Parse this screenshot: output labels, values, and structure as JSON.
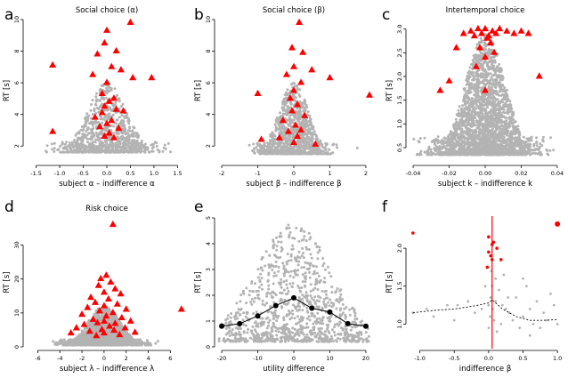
{
  "colors": {
    "points": "#b3b3b3",
    "highlight": "#ff0000",
    "line": "#000000"
  },
  "chart_data": [
    {
      "panel": "a",
      "type": "scatter",
      "title": "Social choice (α)",
      "xlabel": "subject α – indifference α",
      "ylabel": "RT [s]",
      "xlim": [
        -1.7,
        1.7
      ],
      "ylim": [
        1,
        10
      ],
      "xticks": [
        -1.5,
        -1.0,
        -0.5,
        0.0,
        0.5,
        1.0,
        1.5
      ],
      "xtick_labels": [
        "-1.5",
        "-1.0",
        "-0.5",
        "0.0",
        "0.5",
        "1.0",
        "1.5"
      ],
      "yticks": [
        2,
        4,
        6,
        8,
        10
      ],
      "ytick_labels": [
        "2",
        "4",
        "6",
        "8",
        "10"
      ],
      "cloud": {
        "center_x": 0.0,
        "spread_x": 0.45,
        "y_min": 1.6,
        "y_peak": 6.0,
        "count": 900
      },
      "highlight_points": [
        [
          0.0,
          9.3
        ],
        [
          0.5,
          9.8
        ],
        [
          -0.05,
          8.5
        ],
        [
          0.2,
          8.0
        ],
        [
          -0.2,
          7.8
        ],
        [
          -1.15,
          7.1
        ],
        [
          0.1,
          7.0
        ],
        [
          0.3,
          6.8
        ],
        [
          0.95,
          6.3
        ],
        [
          -0.3,
          6.5
        ],
        [
          0.55,
          6.3
        ],
        [
          0.0,
          6.0
        ],
        [
          -0.1,
          5.3
        ],
        [
          0.15,
          5.0
        ],
        [
          0.05,
          4.8
        ],
        [
          -0.05,
          4.5
        ],
        [
          0.2,
          4.3
        ],
        [
          -0.1,
          4.1
        ],
        [
          0.35,
          4.2
        ],
        [
          -0.25,
          3.8
        ],
        [
          0.1,
          3.6
        ],
        [
          0.0,
          3.4
        ],
        [
          -0.15,
          3.2
        ],
        [
          0.25,
          3.1
        ],
        [
          -1.15,
          2.9
        ],
        [
          0.05,
          2.8
        ],
        [
          -0.05,
          2.6
        ],
        [
          0.15,
          2.5
        ]
      ]
    },
    {
      "panel": "b",
      "type": "scatter",
      "title": "Social choice (β)",
      "xlabel": "subject β – indifference β",
      "ylabel": "RT [s]",
      "xlim": [
        -2.1,
        2.1
      ],
      "ylim": [
        1,
        10
      ],
      "xticks": [
        -2,
        -1,
        0,
        1,
        2
      ],
      "xtick_labels": [
        "-2",
        "-1",
        "0",
        "1",
        "2"
      ],
      "yticks": [
        2,
        4,
        6,
        8,
        10
      ],
      "ytick_labels": [
        "2",
        "4",
        "6",
        "8",
        "10"
      ],
      "cloud": {
        "center_x": 0.0,
        "spread_x": 0.45,
        "y_min": 1.5,
        "y_peak": 6.0,
        "count": 1000
      },
      "highlight_points": [
        [
          0.15,
          9.8
        ],
        [
          -0.05,
          8.2
        ],
        [
          0.25,
          7.9
        ],
        [
          0.0,
          7.0
        ],
        [
          -0.2,
          6.5
        ],
        [
          0.5,
          6.8
        ],
        [
          1.0,
          6.3
        ],
        [
          -1.0,
          5.3
        ],
        [
          0.2,
          6.0
        ],
        [
          0.0,
          5.5
        ],
        [
          -0.1,
          5.0
        ],
        [
          0.1,
          4.6
        ],
        [
          2.1,
          5.2
        ],
        [
          -0.05,
          4.2
        ],
        [
          0.3,
          3.9
        ],
        [
          -0.3,
          3.6
        ],
        [
          0.05,
          3.3
        ],
        [
          0.2,
          3.0
        ],
        [
          -0.15,
          2.9
        ],
        [
          0.1,
          2.6
        ],
        [
          -0.9,
          2.4
        ],
        [
          0.0,
          2.2
        ],
        [
          0.6,
          2.1
        ],
        [
          -0.4,
          2.5
        ]
      ]
    },
    {
      "panel": "c",
      "type": "scatter",
      "title": "Intertemporal choice",
      "xlabel": "subject k – indifference k",
      "ylabel": "RT [s]",
      "xlim": [
        -0.042,
        0.042
      ],
      "ylim": [
        0.2,
        3.2
      ],
      "xticks": [
        -0.04,
        -0.02,
        0.0,
        0.02,
        0.04
      ],
      "xtick_labels": [
        "-0.04",
        "-0.02",
        "0.00",
        "0.02",
        "0.04"
      ],
      "yticks": [
        0.5,
        1.0,
        1.5,
        2.0,
        2.5,
        3.0
      ],
      "ytick_labels": [
        "0.5",
        "1.0",
        "1.5",
        "2.0",
        "2.5",
        "3.0"
      ],
      "cloud": {
        "center_x": 0.0,
        "spread_x": 0.012,
        "y_min": 0.35,
        "y_peak": 2.9,
        "count": 2600
      },
      "highlight_points": [
        [
          -0.008,
          2.95
        ],
        [
          -0.004,
          3.0
        ],
        [
          0.0,
          3.0
        ],
        [
          0.004,
          2.95
        ],
        [
          0.008,
          3.0
        ],
        [
          0.012,
          2.95
        ],
        [
          0.016,
          2.9
        ],
        [
          0.02,
          2.95
        ],
        [
          -0.012,
          2.9
        ],
        [
          -0.002,
          2.9
        ],
        [
          0.002,
          2.85
        ],
        [
          0.006,
          2.9
        ],
        [
          -0.006,
          2.85
        ],
        [
          0.001,
          2.8
        ],
        [
          0.003,
          2.7
        ],
        [
          -0.003,
          2.6
        ],
        [
          0.005,
          2.5
        ],
        [
          0.024,
          2.9
        ],
        [
          0.03,
          2.0
        ],
        [
          -0.016,
          2.6
        ],
        [
          0.0,
          2.4
        ],
        [
          -0.02,
          1.9
        ],
        [
          -0.025,
          1.7
        ],
        [
          0.0,
          1.7
        ],
        [
          -0.005,
          2.2
        ]
      ]
    },
    {
      "panel": "d",
      "type": "scatter",
      "title": "Risk choice",
      "xlabel": "subject λ – indifference λ",
      "ylabel": "RT [s]",
      "xlim": [
        -7,
        7.5
      ],
      "ylim": [
        0,
        38
      ],
      "xticks": [
        -6,
        -4,
        -2,
        0,
        2,
        4,
        6
      ],
      "xtick_labels": [
        "-6",
        "-4",
        "-2",
        "0",
        "2",
        "4",
        "6"
      ],
      "yticks": [
        0,
        10,
        20,
        30
      ],
      "ytick_labels": [
        "0",
        "10",
        "20",
        "30"
      ],
      "cloud": {
        "center_x": 0.0,
        "spread_x": 1.6,
        "y_min": 0.5,
        "y_peak": 12,
        "count": 1600
      },
      "highlight_points": [
        [
          0.8,
          36
        ],
        [
          0.2,
          21
        ],
        [
          -0.3,
          20
        ],
        [
          0.6,
          19
        ],
        [
          -0.5,
          18
        ],
        [
          1.0,
          17
        ],
        [
          0.0,
          16
        ],
        [
          1.5,
          15.5
        ],
        [
          -1.2,
          14.5
        ],
        [
          0.4,
          14
        ],
        [
          -0.8,
          13
        ],
        [
          1.2,
          12.5
        ],
        [
          0.0,
          12
        ],
        [
          -1.5,
          11.5
        ],
        [
          2.0,
          11
        ],
        [
          7.0,
          11
        ],
        [
          -0.4,
          10.5
        ],
        [
          0.8,
          10
        ],
        [
          -2.0,
          9.5
        ],
        [
          0.2,
          9
        ],
        [
          1.6,
          8.5
        ],
        [
          -1.0,
          8
        ],
        [
          2.4,
          7.5
        ],
        [
          0.0,
          7.5
        ],
        [
          -0.6,
          7
        ],
        [
          1.0,
          6.8
        ],
        [
          -1.8,
          6.5
        ],
        [
          0.5,
          6
        ],
        [
          -2.5,
          5.5
        ],
        [
          1.9,
          5.5
        ],
        [
          -0.2,
          5
        ],
        [
          0.9,
          4.8
        ],
        [
          -1.3,
          4.5
        ],
        [
          2.8,
          4.2
        ],
        [
          0.0,
          4.0
        ],
        [
          -3.0,
          4.0
        ],
        [
          1.4,
          3.5
        ],
        [
          -0.7,
          3.2
        ]
      ]
    },
    {
      "panel": "e",
      "type": "scatter",
      "title": "",
      "xlabel": "utility difference",
      "ylabel": "RT [s]",
      "xlim": [
        -21,
        21
      ],
      "ylim": [
        0,
        5
      ],
      "xticks": [
        -20,
        -10,
        0,
        10,
        20
      ],
      "xtick_labels": [
        "-20",
        "-10",
        "0",
        "10",
        "20"
      ],
      "yticks": [
        0,
        1,
        2,
        3,
        4,
        5
      ],
      "ytick_labels": [
        "0",
        "1",
        "2",
        "3",
        "4",
        "5"
      ],
      "cloud": {
        "center_x": 0.0,
        "spread_x": 12,
        "y_min": 0.2,
        "y_peak": 4.8,
        "count": 1100
      },
      "line_series": {
        "x": [
          -20,
          -15,
          -10,
          -5,
          0,
          5,
          10,
          15,
          20
        ],
        "y": [
          0.8,
          0.9,
          1.2,
          1.6,
          1.9,
          1.5,
          1.35,
          0.9,
          0.8
        ]
      }
    },
    {
      "panel": "f",
      "type": "scatter",
      "title": "",
      "xlabel": "indifference β",
      "ylabel": "RT [s]",
      "xlim": [
        -1.15,
        1.05
      ],
      "ylim": [
        0.7,
        2.4
      ],
      "xticks": [
        -1.0,
        -0.5,
        0.0,
        0.5,
        1.0
      ],
      "xtick_labels": [
        "-1.0",
        "-0.5",
        "0.0",
        "0.5",
        "1.0"
      ],
      "yticks": [
        1.0,
        1.5,
        2.0
      ],
      "ytick_labels": [
        "1.0",
        "1.5",
        "2.0"
      ],
      "vline_x": 0.05,
      "gray_points": [
        [
          -1.1,
          1.15
        ],
        [
          -0.9,
          1.2
        ],
        [
          -0.6,
          1.25
        ],
        [
          -0.45,
          1.25
        ],
        [
          -0.3,
          1.3
        ],
        [
          -0.2,
          1.15
        ],
        [
          -0.1,
          1.2
        ],
        [
          0.0,
          1.25
        ],
        [
          0.02,
          1.1
        ],
        [
          0.03,
          1.35
        ],
        [
          0.05,
          1.5
        ],
        [
          0.06,
          1.2
        ],
        [
          0.08,
          1.05
        ],
        [
          0.1,
          1.3
        ],
        [
          0.12,
          0.9
        ],
        [
          0.15,
          1.45
        ],
        [
          0.18,
          1.0
        ],
        [
          0.2,
          1.25
        ],
        [
          0.25,
          1.2
        ],
        [
          0.3,
          1.15
        ],
        [
          0.35,
          1.05
        ],
        [
          0.4,
          1.35
        ],
        [
          0.45,
          0.95
        ],
        [
          0.5,
          1.1
        ],
        [
          0.55,
          1.5
        ],
        [
          0.6,
          1.2
        ],
        [
          0.65,
          1.0
        ],
        [
          0.7,
          1.3
        ],
        [
          0.75,
          0.95
        ],
        [
          0.8,
          1.15
        ],
        [
          0.85,
          1.05
        ],
        [
          0.9,
          1.4
        ],
        [
          0.95,
          1.25
        ],
        [
          1.0,
          1.0
        ],
        [
          -0.05,
          1.5
        ],
        [
          0.0,
          0.95
        ],
        [
          0.1,
          1.6
        ],
        [
          0.22,
          1.65
        ],
        [
          0.5,
          1.6
        ],
        [
          0.04,
          1.7
        ],
        [
          0.6,
          0.85
        ],
        [
          -0.5,
          1.05
        ],
        [
          -0.8,
          1.1
        ],
        [
          0.28,
          1.35
        ]
      ],
      "highlight_points": [
        [
          -1.1,
          2.2
        ],
        [
          1.0,
          2.32
        ],
        [
          0.0,
          2.15
        ],
        [
          0.05,
          2.05
        ],
        [
          0.0,
          1.95
        ],
        [
          0.03,
          1.9
        ],
        [
          0.05,
          1.85
        ],
        [
          0.12,
          2.0
        ],
        [
          0.18,
          1.85
        ],
        [
          -0.02,
          1.75
        ],
        [
          0.07,
          2.08
        ]
      ],
      "fit_line": {
        "x": [
          -1.1,
          -0.8,
          -0.5,
          -0.2,
          0.0,
          0.05,
          0.2,
          0.4,
          0.6,
          0.8,
          1.0
        ],
        "y": [
          1.15,
          1.18,
          1.2,
          1.24,
          1.28,
          1.32,
          1.2,
          1.1,
          1.05,
          1.05,
          1.06
        ]
      }
    }
  ]
}
